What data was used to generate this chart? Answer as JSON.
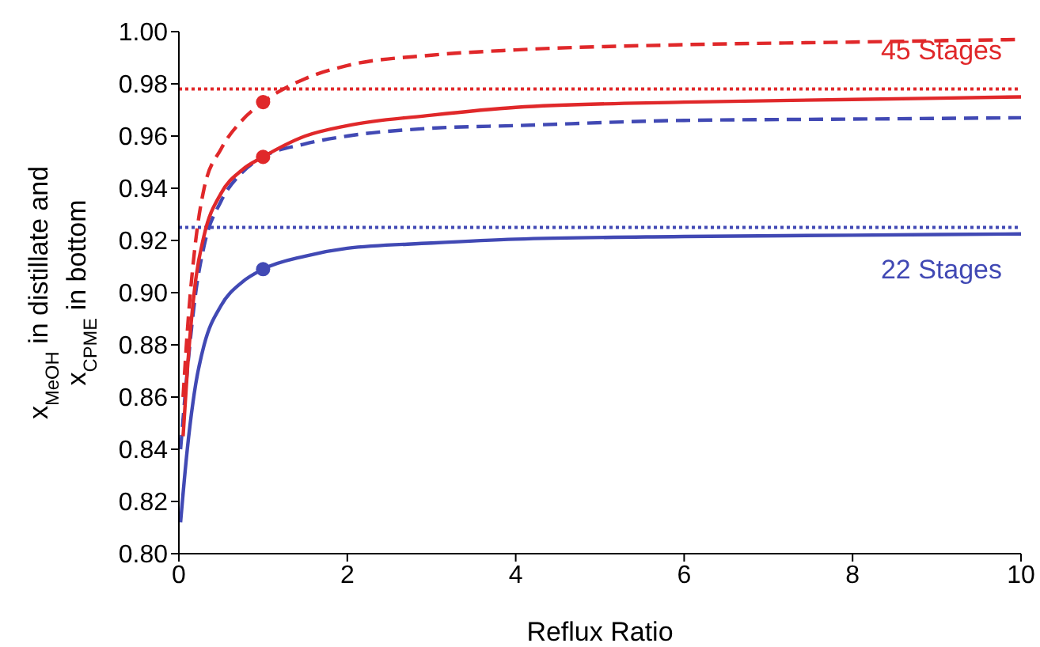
{
  "chart_data": {
    "type": "line",
    "xlabel": "Reflux Ratio",
    "ylabel": "x$_{MeOH}$ in distillate and x$_{CPME}$ in bottom",
    "xlim": [
      0,
      10
    ],
    "xticks": [
      0,
      2,
      4,
      6,
      8,
      10
    ],
    "ylim": [
      0.8,
      1.0
    ],
    "yticks": [
      {
        "value": 0.8,
        "label": "0.80"
      },
      {
        "value": 0.82,
        "label": "0.82"
      },
      {
        "value": 0.84,
        "label": "0.84"
      },
      {
        "value": 0.86,
        "label": "0.86"
      },
      {
        "value": 0.88,
        "label": "0.88"
      },
      {
        "value": 0.9,
        "label": "0.90"
      },
      {
        "value": 0.92,
        "label": "0.92"
      },
      {
        "value": 0.94,
        "label": "0.94"
      },
      {
        "value": 0.96,
        "label": "0.96"
      },
      {
        "value": 0.98,
        "label": "0.98"
      },
      {
        "value": 1.0,
        "label": "1.00"
      }
    ],
    "grid": false,
    "series": [
      {
        "name": "22 Stages",
        "color": "#4149b4",
        "line_style": "solid",
        "x": [
          0.02,
          0.1,
          0.2,
          0.3,
          0.5,
          0.75,
          1,
          1.5,
          2,
          3,
          4,
          6,
          8,
          10
        ],
        "values": [
          0.812,
          0.84,
          0.865,
          0.88,
          0.895,
          0.904,
          0.909,
          0.914,
          0.917,
          0.919,
          0.9205,
          0.9215,
          0.922,
          0.9225
        ]
      },
      {
        "color": "#4149b4",
        "line_style": "dashed",
        "x": [
          0.02,
          0.1,
          0.2,
          0.3,
          0.5,
          0.75,
          1,
          1.5,
          2,
          3,
          4,
          6,
          8,
          10
        ],
        "values": [
          0.84,
          0.87,
          0.9,
          0.918,
          0.935,
          0.946,
          0.952,
          0.957,
          0.96,
          0.963,
          0.964,
          0.966,
          0.9665,
          0.967
        ]
      },
      {
        "name": "45 Stages",
        "color": "#e0282a",
        "line_style": "solid",
        "x": [
          0.05,
          0.1,
          0.2,
          0.3,
          0.5,
          0.75,
          1,
          1.5,
          2,
          3,
          4,
          6,
          8,
          10
        ],
        "values": [
          0.845,
          0.87,
          0.905,
          0.922,
          0.938,
          0.947,
          0.952,
          0.96,
          0.964,
          0.968,
          0.971,
          0.973,
          0.974,
          0.975
        ]
      },
      {
        "color": "#e0282a",
        "line_style": "dashed",
        "x": [
          0.05,
          0.1,
          0.2,
          0.3,
          0.5,
          0.75,
          1,
          1.5,
          2,
          3,
          4,
          6,
          8,
          10
        ],
        "values": [
          0.86,
          0.885,
          0.92,
          0.94,
          0.955,
          0.966,
          0.973,
          0.982,
          0.987,
          0.991,
          0.993,
          0.995,
          0.996,
          0.997
        ]
      },
      {
        "type": "scatter",
        "marker": "circle",
        "color": "#e0282a",
        "x": [
          1,
          1
        ],
        "values": [
          0.973,
          0.952
        ]
      },
      {
        "type": "scatter",
        "marker": "circle",
        "color": "#4149b4",
        "x": [
          1
        ],
        "values": [
          0.909
        ]
      }
    ],
    "ref_lines": [
      {
        "axis": "y",
        "value": 0.978,
        "color": "#e0282a",
        "line_style": "dotted"
      },
      {
        "axis": "y",
        "value": 0.925,
        "color": "#4149b4",
        "line_style": "dotted"
      }
    ]
  }
}
